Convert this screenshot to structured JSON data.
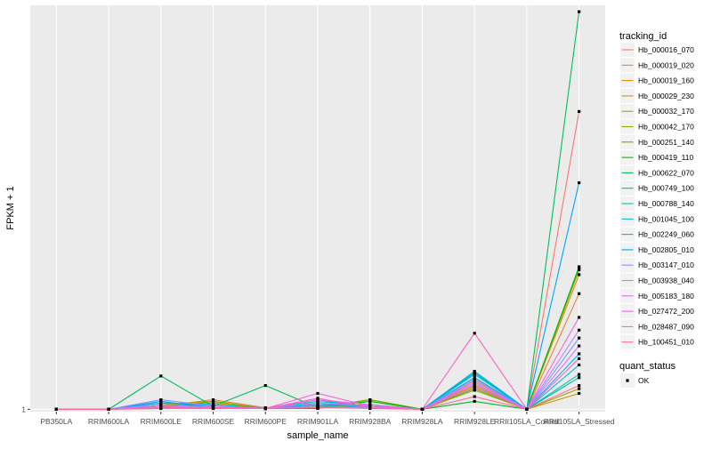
{
  "chart_data": {
    "type": "line",
    "xlabel": "sample_name",
    "ylabel": "FPKM + 1",
    "categories": [
      "PB350LA",
      "RRIM600LA",
      "RRIM600LE",
      "RRIM600SE",
      "RRIM600PE",
      "RRIM901LA",
      "RRIM928BA",
      "RRIM928LA",
      "RRIM928LE",
      "RRII105LA_Control",
      "RRII105LA_Stressed"
    ],
    "y_ticks": [
      {
        "value": 1,
        "label": "1"
      }
    ],
    "ylim": [
      0.85,
      26.5
    ],
    "legend": {
      "title": "tracking_id",
      "position": "right"
    },
    "point_legend": {
      "title": "quant_status",
      "entries": [
        "OK"
      ]
    },
    "series": [
      {
        "name": "Hb_000016_070",
        "color": "#F8766D",
        "values": [
          1,
          1,
          1.1,
          1.1,
          1.05,
          1.2,
          1.1,
          1,
          2.8,
          1,
          19.8
        ]
      },
      {
        "name": "Hb_000019_020",
        "color": "#EC8239",
        "values": [
          1,
          1,
          1.2,
          1.6,
          1.1,
          1.3,
          1.2,
          1,
          3.0,
          1,
          8.3
        ]
      },
      {
        "name": "Hb_000019_160",
        "color": "#DB8E00",
        "values": [
          1,
          1,
          1.3,
          1.5,
          1.05,
          1.2,
          1.3,
          1,
          2.6,
          1,
          9.5
        ]
      },
      {
        "name": "Hb_000029_230",
        "color": "#C79800",
        "values": [
          1,
          1,
          1.2,
          1.4,
          1.05,
          1.1,
          1.3,
          1,
          2.4,
          1,
          2.0
        ]
      },
      {
        "name": "Hb_000032_170",
        "color": "#AEA200",
        "values": [
          1,
          1,
          1.1,
          1.3,
          1.05,
          1.2,
          1.5,
          1,
          2.5,
          1,
          9.8
        ]
      },
      {
        "name": "Hb_000042_170",
        "color": "#8FAA00",
        "values": [
          1,
          1,
          1.4,
          1.2,
          1.05,
          1.1,
          1.6,
          1,
          2.2,
          1,
          2.3
        ]
      },
      {
        "name": "Hb_000251_140",
        "color": "#64B200",
        "values": [
          1,
          1,
          1.1,
          1.5,
          1.05,
          1.1,
          1.6,
          1,
          2.3,
          1,
          9.9
        ]
      },
      {
        "name": "Hb_000419_110",
        "color": "#00B81B",
        "values": [
          1,
          1,
          1.05,
          1.05,
          1.05,
          1.05,
          1.5,
          1,
          1.5,
          1,
          10.0
        ]
      },
      {
        "name": "Hb_000622_070",
        "color": "#00BD5C",
        "values": [
          1,
          1,
          3.1,
          1.2,
          2.5,
          1.1,
          1.2,
          1,
          3.2,
          1,
          26.1
        ]
      },
      {
        "name": "Hb_000749_100",
        "color": "#00C08E",
        "values": [
          1,
          1,
          1.1,
          1.1,
          1.05,
          1.2,
          1.3,
          1,
          3.3,
          1,
          3.0
        ]
      },
      {
        "name": "Hb_000788_140",
        "color": "#00C1B7",
        "values": [
          1,
          1,
          1.3,
          1.2,
          1.05,
          1.5,
          1.2,
          1,
          3.4,
          1,
          3.2
        ]
      },
      {
        "name": "Hb_001045_100",
        "color": "#00BDD4",
        "values": [
          1,
          1,
          1.2,
          1.1,
          1.05,
          1.4,
          1.1,
          1,
          3.2,
          1,
          3.8
        ]
      },
      {
        "name": "Hb_002249_060",
        "color": "#00B5EE",
        "values": [
          1,
          1,
          1.4,
          1.3,
          1.05,
          1.6,
          1.1,
          1,
          3.0,
          1,
          4.5
        ]
      },
      {
        "name": "Hb_002805_010",
        "color": "#00A7FF",
        "values": [
          1,
          1,
          1.5,
          1.1,
          1.05,
          1.3,
          1.2,
          1,
          3.3,
          1,
          15.3
        ]
      },
      {
        "name": "Hb_003147_010",
        "color": "#7F96FF",
        "values": [
          1,
          1,
          1.6,
          1.2,
          1.05,
          1.2,
          1.1,
          1,
          2.9,
          1,
          5.5
        ]
      },
      {
        "name": "Hb_003938_040",
        "color": "#BC81FF",
        "values": [
          1,
          1,
          1.3,
          1.1,
          1.05,
          1.4,
          1.2,
          1,
          2.7,
          1,
          6.0
        ]
      },
      {
        "name": "Hb_005183_180",
        "color": "#E26EF7",
        "values": [
          1,
          1,
          1.1,
          1.2,
          1.05,
          1.6,
          1.3,
          1,
          2.6,
          1,
          5.0
        ]
      },
      {
        "name": "Hb_027472_200",
        "color": "#F863DF",
        "values": [
          1,
          1,
          1.2,
          1.1,
          1.05,
          2.0,
          1.2,
          1,
          2.4,
          1,
          6.8
        ]
      },
      {
        "name": "Hb_028487_090",
        "color": "#FF62BF",
        "values": [
          1,
          1,
          1.1,
          1.1,
          1.05,
          1.7,
          1.1,
          1,
          5.8,
          1,
          4.2
        ]
      },
      {
        "name": "Hb_100451_010",
        "color": "#FF6A9A",
        "values": [
          1,
          1,
          1.05,
          1.05,
          1.05,
          1.1,
          1.05,
          1,
          1.8,
          1,
          2.5
        ]
      }
    ]
  }
}
